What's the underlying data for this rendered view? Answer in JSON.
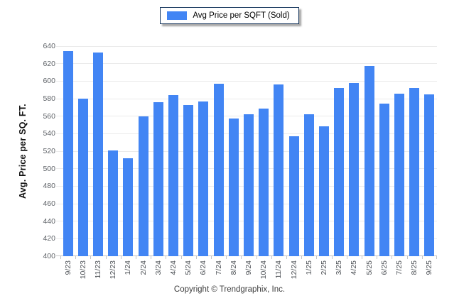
{
  "legend": {
    "label": "Avg Price per SQFT (Sold)",
    "swatch_color": "#4285f4"
  },
  "y_axis": {
    "title": "Avg. Price per SQ. FT."
  },
  "footer": {
    "copyright": "Copyright © Trendgraphix, Inc."
  },
  "colors": {
    "bar": "#4285f4",
    "gridline": "#ebebeb",
    "axis_line": "#c6c6c6",
    "y_tick_label": "#5f6368",
    "x_tick_label": "#4d5156",
    "legend_border": "#17375e"
  },
  "chart_data": {
    "type": "bar",
    "title": "Avg Price per SQFT (Sold)",
    "series_name": "Avg Price per SQFT (Sold)",
    "xlabel": "",
    "ylabel": "Avg. Price per SQ. FT.",
    "categories": [
      "9/23",
      "10/23",
      "11/23",
      "12/23",
      "1/24",
      "2/24",
      "3/24",
      "4/24",
      "5/24",
      "6/24",
      "7/24",
      "8/24",
      "9/24",
      "10/24",
      "11/24",
      "12/24",
      "1/25",
      "2/25",
      "3/25",
      "4/25",
      "5/25",
      "6/25",
      "7/25",
      "8/25",
      "9/25"
    ],
    "values": [
      634,
      580,
      633,
      521,
      512,
      560,
      576,
      584,
      573,
      577,
      597,
      557,
      562,
      569,
      596,
      537,
      562,
      548,
      592,
      598,
      617,
      574,
      586,
      592,
      585
    ],
    "ylim": [
      400,
      640
    ],
    "ytick_step": 20,
    "yticks": [
      400,
      420,
      440,
      460,
      480,
      500,
      520,
      540,
      560,
      580,
      600,
      620,
      640
    ],
    "grid": true,
    "legend_position": "top-center"
  }
}
